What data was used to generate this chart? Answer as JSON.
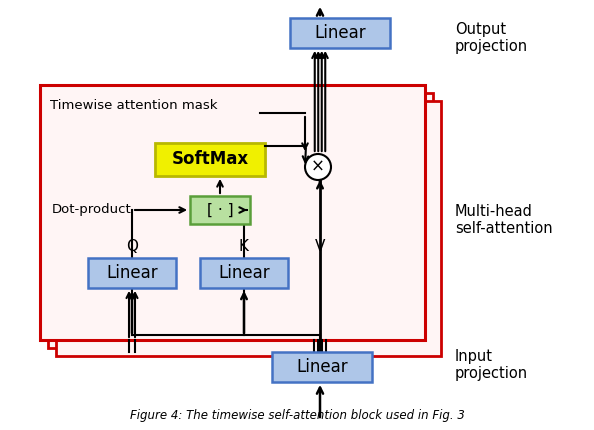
{
  "bg_color": "#ffffff",
  "red_color": "#cc0000",
  "blue_fill": "#aec6e8",
  "blue_edge": "#4472C4",
  "green_fill": "#b8e0a0",
  "green_edge": "#5a9e3a",
  "yellow_fill": "#f0f000",
  "yellow_edge": "#b8b800",
  "white": "#ffffff",
  "black": "#000000",
  "label_timewise": "Timewise attention mask",
  "label_dot_product": "Dot-product",
  "label_Q": "Q",
  "label_K": "K",
  "label_V": "V",
  "label_softmax": "SoftMax",
  "label_dot": "[ · ]",
  "label_linear": "Linear",
  "label_times": "×",
  "label_output_proj": "Output\nprojection",
  "label_multi_head": "Multi-head\nself-attention",
  "label_input_proj": "Input\nprojection",
  "caption": "Figure 4: The timewise self-attention block used in Fig. 3"
}
